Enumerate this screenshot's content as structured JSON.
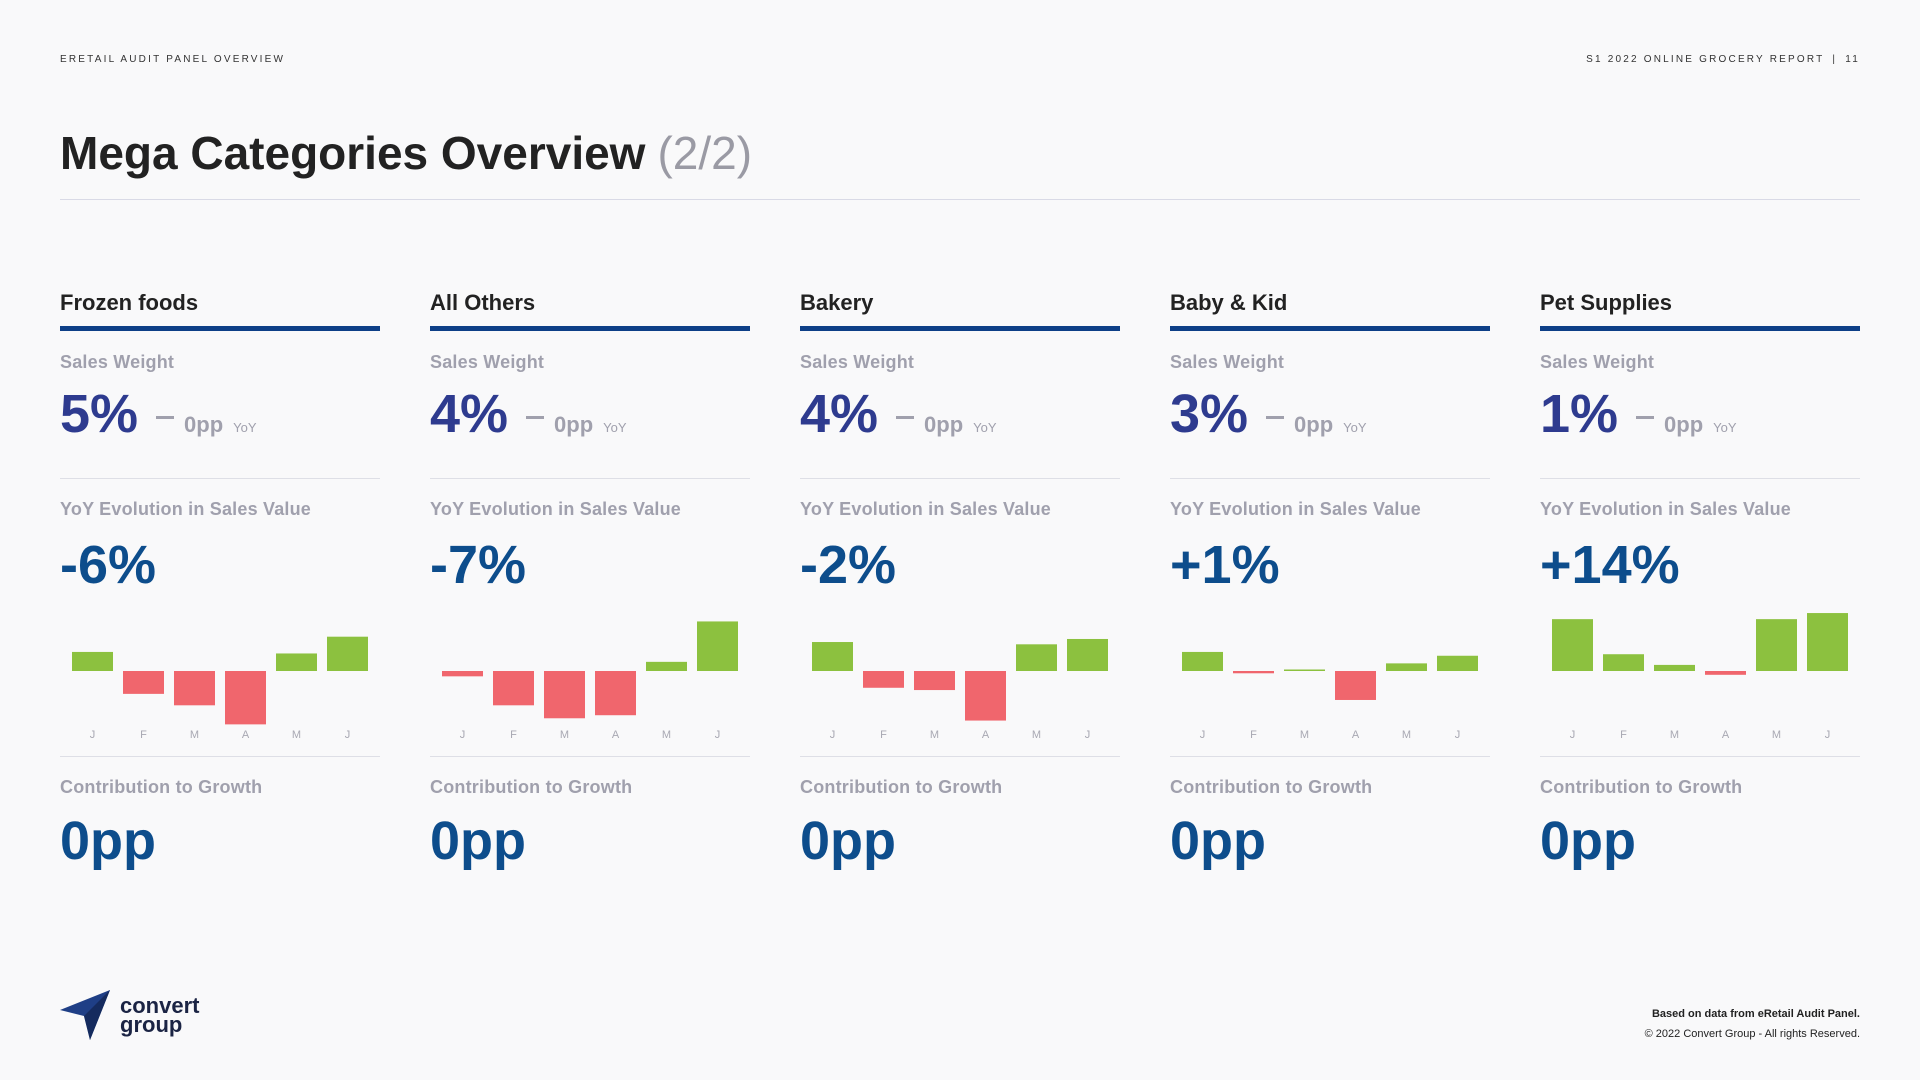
{
  "header": {
    "left": "ERETAIL AUDIT PANEL OVERVIEW",
    "right": "S1 2022  ONLINE GROCERY REPORT",
    "separator": "|",
    "page": "11"
  },
  "title": {
    "main": "Mega Categories Overview",
    "sub": "(2/2)"
  },
  "labels": {
    "sales_weight": "Sales Weight",
    "yoy": "YoY",
    "yoy_evolution": "YoY Evolution in Sales Value",
    "contribution": "Contribution to Growth"
  },
  "colors": {
    "positive": "#8cc13f",
    "negative": "#f0666d",
    "accent": "#0d3f87"
  },
  "cards": [
    {
      "name": "Frozen foods",
      "sales_weight": "5%",
      "weight_change": "0pp",
      "yoy_evolution": "-6%",
      "contribution": "0pp"
    },
    {
      "name": "All Others",
      "sales_weight": "4%",
      "weight_change": "0pp",
      "yoy_evolution": "-7%",
      "contribution": "0pp"
    },
    {
      "name": "Bakery",
      "sales_weight": "4%",
      "weight_change": "0pp",
      "yoy_evolution": "-2%",
      "contribution": "0pp"
    },
    {
      "name": "Baby & Kid",
      "sales_weight": "3%",
      "weight_change": "0pp",
      "yoy_evolution": "+1%",
      "contribution": "0pp"
    },
    {
      "name": "Pet Supplies",
      "sales_weight": "1%",
      "weight_change": "0pp",
      "yoy_evolution": "+14%",
      "contribution": "0pp"
    }
  ],
  "chart_data": [
    {
      "type": "bar",
      "title": "Frozen foods",
      "categories": [
        "J",
        "F",
        "M",
        "A",
        "M",
        "J"
      ],
      "values": [
        2.5,
        -3.0,
        -4.5,
        -7.0,
        2.3,
        4.5
      ],
      "ylim": [
        -8,
        8
      ]
    },
    {
      "type": "bar",
      "title": "All Others",
      "categories": [
        "J",
        "F",
        "M",
        "A",
        "M",
        "J"
      ],
      "values": [
        -0.7,
        -4.5,
        -6.2,
        -5.8,
        1.2,
        6.5
      ],
      "ylim": [
        -8,
        8
      ]
    },
    {
      "type": "bar",
      "title": "Bakery",
      "categories": [
        "J",
        "F",
        "M",
        "A",
        "M",
        "J"
      ],
      "values": [
        3.8,
        -2.2,
        -2.5,
        -6.5,
        3.5,
        4.2
      ],
      "ylim": [
        -8,
        8
      ]
    },
    {
      "type": "bar",
      "title": "Baby & Kid",
      "categories": [
        "J",
        "F",
        "M",
        "A",
        "M",
        "J"
      ],
      "values": [
        2.5,
        -0.3,
        0.15,
        -3.8,
        1.0,
        2.0
      ],
      "ylim": [
        -8,
        8
      ]
    },
    {
      "type": "bar",
      "title": "Pet Supplies",
      "categories": [
        "J",
        "F",
        "M",
        "A",
        "M",
        "J"
      ],
      "values": [
        6.8,
        2.2,
        0.8,
        -0.5,
        6.8,
        7.6
      ],
      "ylim": [
        -8,
        8
      ]
    }
  ],
  "footer": {
    "source": "Based on data from eRetail Audit Panel.",
    "copyright": "© 2022 Convert Group - All rights Reserved."
  },
  "logo": {
    "line1": "convert",
    "line2": "group",
    "icon": "paper-plane-logo-icon"
  }
}
